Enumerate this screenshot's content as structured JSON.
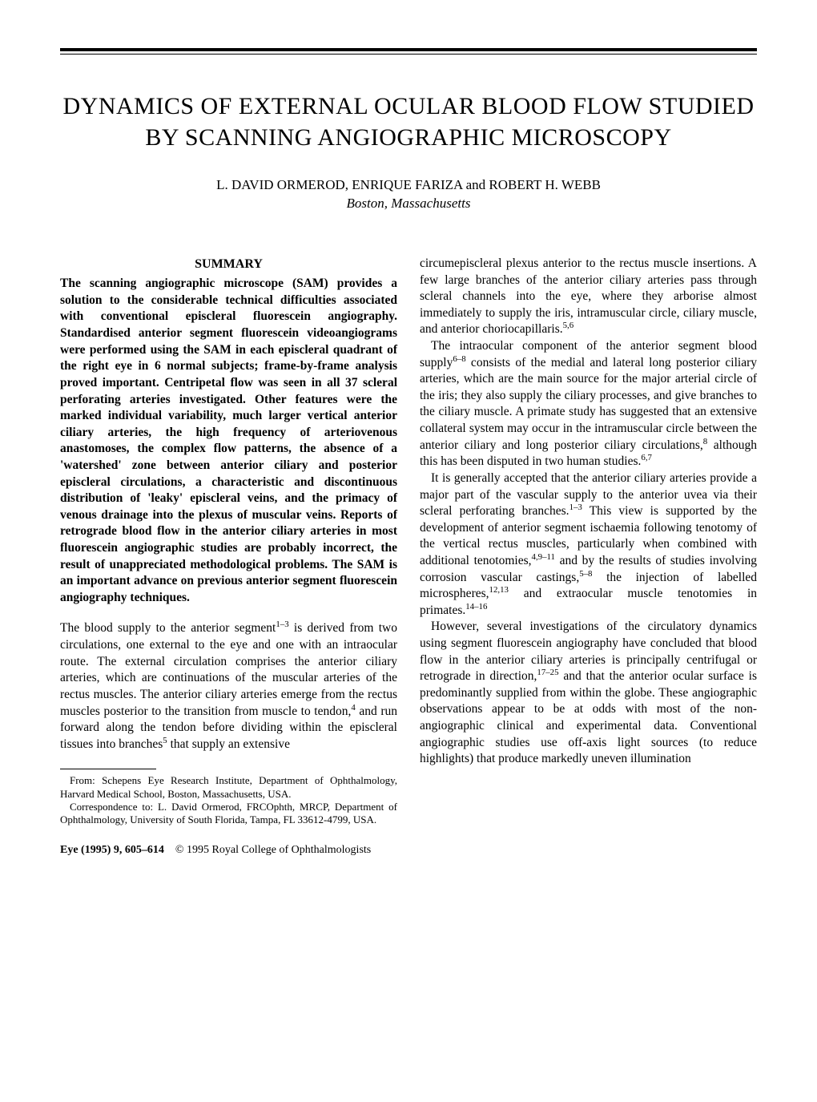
{
  "title": "DYNAMICS OF EXTERNAL OCULAR BLOOD FLOW STUDIED BY SCANNING ANGIOGRAPHIC MICROSCOPY",
  "authors": "L. DAVID ORMEROD, ENRIQUE FARIZA and ROBERT H. WEBB",
  "affiliation": "Boston, Massachusetts",
  "summary_heading": "SUMMARY",
  "summary_text": "The scanning angiographic microscope (SAM) provides a solution to the considerable technical difficulties associated with conventional episcleral fluorescein angiography. Standardised anterior segment fluorescein videoangiograms were performed using the SAM in each episcleral quadrant of the right eye in 6 normal subjects; frame-by-frame analysis proved important. Centripetal flow was seen in all 37 scleral perforating arteries investigated. Other features were the marked individual variability, much larger vertical anterior ciliary arteries, the high frequency of arteriovenous anastomoses, the complex flow patterns, the absence of a 'watershed' zone between anterior ciliary and posterior episcleral circulations, a characteristic and discontinuous distribution of 'leaky' episcleral veins, and the primacy of venous drainage into the plexus of muscular veins. Reports of retrograde blood flow in the anterior ciliary arteries in most fluorescein angiographic studies are probably incorrect, the result of unappreciated methodological problems. The SAM is an important advance on previous anterior segment fluorescein angiography techniques.",
  "left_para1_a": "The blood supply to the anterior segment",
  "left_para1_sup": "1–3",
  "left_para1_b": " is derived from two circulations, one external to the eye and one with an intraocular route. The external circulation comprises the anterior ciliary arteries, which are continuations of the muscular arteries of the rectus muscles. The anterior ciliary arteries emerge from the rectus muscles posterior to the transition from muscle to tendon,",
  "left_para1_sup2": "4",
  "left_para1_c": " and run forward along the tendon before dividing within the episcleral tissues into branches",
  "left_para1_sup3": "5",
  "left_para1_d": " that supply an extensive",
  "footnote1": "From: Schepens Eye Research Institute, Department of Ophthalmology, Harvard Medical School, Boston, Massachusetts, USA.",
  "footnote2": "Correspondence to: L. David Ormerod, FRCOphth, MRCP, Department of Ophthalmology, University of South Florida, Tampa, FL 33612-4799, USA.",
  "right_para1_a": "circumepiscleral plexus anterior to the rectus muscle insertions. A few large branches of the anterior ciliary arteries pass through scleral channels into the eye, where they arborise almost immediately to supply the iris, intramuscular circle, ciliary muscle, and anterior choriocapillaris.",
  "right_para1_sup": "5,6",
  "right_para2_a": "The intraocular component of the anterior segment blood supply",
  "right_para2_sup1": "6–8",
  "right_para2_b": " consists of the medial and lateral long posterior ciliary arteries, which are the main source for the major arterial circle of the iris; they also supply the ciliary processes, and give branches to the ciliary muscle. A primate study has suggested that an extensive collateral system may occur in the intramuscular circle between the anterior ciliary and long posterior ciliary circulations,",
  "right_para2_sup2": "8",
  "right_para2_c": " although this has been disputed in two human studies.",
  "right_para2_sup3": "6,7",
  "right_para3_a": "It is generally accepted that the anterior ciliary arteries provide a major part of the vascular supply to the anterior uvea via their scleral perforating branches.",
  "right_para3_sup1": "1–3",
  "right_para3_b": " This view is supported by the development of anterior segment ischaemia following tenotomy of the vertical rectus muscles, particularly when combined with additional tenotomies,",
  "right_para3_sup2": "4,9–11",
  "right_para3_c": " and by the results of studies involving corrosion vascular castings,",
  "right_para3_sup3": "5–8",
  "right_para3_d": " the injection of labelled microspheres,",
  "right_para3_sup4": "12,13",
  "right_para3_e": " and extraocular muscle tenotomies in primates.",
  "right_para3_sup5": "14–16",
  "right_para4_a": "However, several investigations of the circulatory dynamics using segment fluorescein angiography have concluded that blood flow in the anterior ciliary arteries is principally centrifugal or retrograde in direction,",
  "right_para4_sup1": "17–25",
  "right_para4_b": " and that the anterior ocular surface is predominantly supplied from within the globe. These angiographic observations appear to be at odds with most of the non-angiographic clinical and experimental data. Conventional angiographic studies use off-axis light sources (to reduce highlights) that produce markedly uneven illumination",
  "footer_journal": "Eye (1995) 9, 605–614",
  "footer_copyright": "© 1995 Royal College of Ophthalmologists"
}
